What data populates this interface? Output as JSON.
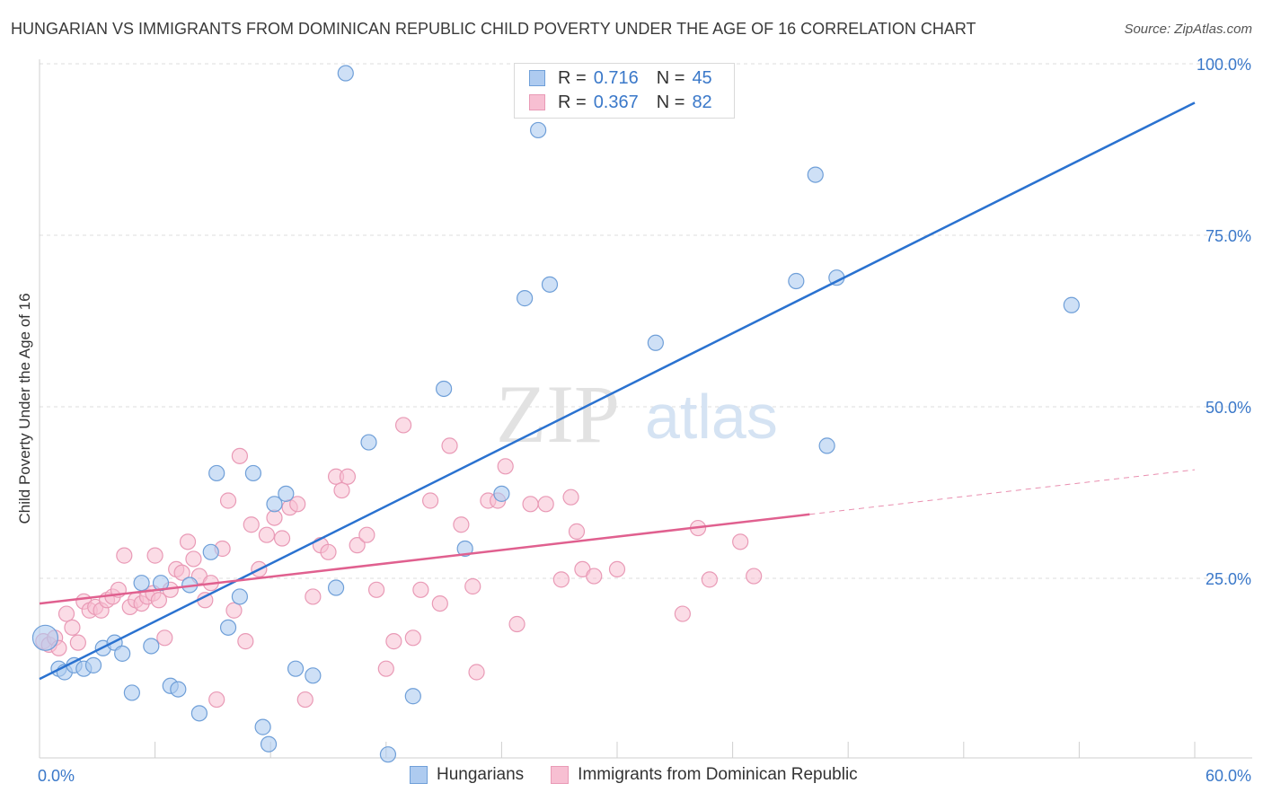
{
  "title": "HUNGARIAN VS IMMIGRANTS FROM DOMINICAN REPUBLIC CHILD POVERTY UNDER THE AGE OF 16 CORRELATION CHART",
  "source": "Source: ZipAtlas.com",
  "watermark": {
    "zip": "ZIP",
    "atlas": "atlas"
  },
  "legend": {
    "r_label": "R =",
    "n_label": "N =",
    "rows": [
      {
        "r": "0.716",
        "n": "45"
      },
      {
        "r": "0.367",
        "n": "82"
      }
    ]
  },
  "colors": {
    "blue_fill": "#aecbf0",
    "blue_stroke": "#6f9fd8",
    "blue_line": "#2a72d0",
    "pink_fill": "#f7bfd2",
    "pink_stroke": "#e99ab6",
    "pink_line": "#e0608f",
    "tick_label": "#3a78c9"
  },
  "chart_data": {
    "type": "scatter",
    "title": "HUNGARIAN VS IMMIGRANTS FROM DOMINICAN REPUBLIC CHILD POVERTY UNDER THE AGE OF 16 CORRELATION CHART",
    "xlabel": "",
    "ylabel": "Child Poverty Under the Age of 16",
    "xlim": [
      0,
      60
    ],
    "ylim": [
      0,
      100
    ],
    "x_tick_labels": [
      "0.0%",
      "60.0%"
    ],
    "y_tick_labels": [
      "25.0%",
      "50.0%",
      "75.0%",
      "100.0%"
    ],
    "y_ticks": [
      25,
      50,
      75,
      100
    ],
    "grid": true,
    "legend_position": "top-center",
    "series": [
      {
        "name": "Hungarians",
        "r": 0.716,
        "n": 45,
        "trend": {
          "x": [
            0,
            60
          ],
          "y": [
            11.5,
            95.5
          ]
        },
        "points": [
          [
            0.3,
            17.5
          ],
          [
            1.0,
            13.0
          ],
          [
            1.3,
            12.5
          ],
          [
            1.8,
            13.5
          ],
          [
            2.3,
            13.0
          ],
          [
            2.8,
            13.5
          ],
          [
            3.3,
            16.0
          ],
          [
            3.9,
            16.8
          ],
          [
            4.3,
            15.2
          ],
          [
            4.8,
            9.5
          ],
          [
            5.3,
            25.5
          ],
          [
            5.8,
            16.3
          ],
          [
            6.3,
            25.5
          ],
          [
            6.8,
            10.5
          ],
          [
            7.2,
            10.0
          ],
          [
            7.8,
            25.2
          ],
          [
            8.3,
            6.5
          ],
          [
            8.9,
            30.0
          ],
          [
            9.2,
            41.5
          ],
          [
            9.8,
            19.0
          ],
          [
            10.4,
            23.5
          ],
          [
            11.1,
            41.5
          ],
          [
            11.6,
            4.5
          ],
          [
            11.9,
            2.0
          ],
          [
            12.2,
            37.0
          ],
          [
            12.8,
            38.5
          ],
          [
            13.3,
            13.0
          ],
          [
            14.2,
            12.0
          ],
          [
            15.4,
            24.8
          ],
          [
            15.9,
            99.8
          ],
          [
            17.1,
            46.0
          ],
          [
            18.1,
            0.5
          ],
          [
            19.4,
            9.0
          ],
          [
            21.0,
            53.8
          ],
          [
            22.1,
            30.5
          ],
          [
            24.0,
            38.5
          ],
          [
            25.2,
            67.0
          ],
          [
            25.9,
            91.5
          ],
          [
            26.5,
            69.0
          ],
          [
            32.0,
            60.5
          ],
          [
            39.3,
            69.5
          ],
          [
            40.3,
            85.0
          ],
          [
            40.9,
            45.5
          ],
          [
            41.4,
            70.0
          ],
          [
            53.6,
            66.0
          ]
        ]
      },
      {
        "name": "Immigrants from Dominican Republic",
        "r": 0.367,
        "n": 82,
        "trend": {
          "x": [
            0,
            40
          ],
          "y": [
            22.5,
            35.5
          ]
        },
        "trend_extension": {
          "x": [
            40,
            60
          ],
          "y": [
            35.5,
            42.0
          ]
        },
        "points": [
          [
            0.2,
            17.0
          ],
          [
            0.5,
            16.5
          ],
          [
            0.8,
            17.5
          ],
          [
            1.0,
            16.0
          ],
          [
            1.4,
            21.0
          ],
          [
            1.7,
            19.0
          ],
          [
            2.0,
            16.8
          ],
          [
            2.3,
            22.8
          ],
          [
            2.6,
            21.5
          ],
          [
            2.9,
            22.0
          ],
          [
            3.2,
            21.5
          ],
          [
            3.5,
            23.0
          ],
          [
            3.8,
            23.5
          ],
          [
            4.1,
            24.5
          ],
          [
            4.4,
            29.5
          ],
          [
            4.7,
            22.0
          ],
          [
            5.0,
            23.0
          ],
          [
            5.3,
            22.5
          ],
          [
            5.6,
            23.5
          ],
          [
            5.9,
            24.0
          ],
          [
            6.2,
            23.0
          ],
          [
            6.5,
            17.5
          ],
          [
            6.8,
            24.5
          ],
          [
            7.1,
            27.5
          ],
          [
            7.4,
            27.0
          ],
          [
            7.7,
            31.5
          ],
          [
            8.0,
            29.0
          ],
          [
            8.3,
            26.5
          ],
          [
            8.6,
            23.0
          ],
          [
            8.9,
            25.5
          ],
          [
            9.2,
            8.5
          ],
          [
            9.5,
            30.5
          ],
          [
            9.8,
            37.5
          ],
          [
            10.1,
            21.5
          ],
          [
            10.4,
            44.0
          ],
          [
            10.7,
            17.0
          ],
          [
            11.0,
            34.0
          ],
          [
            11.4,
            27.5
          ],
          [
            11.8,
            32.5
          ],
          [
            12.2,
            35.0
          ],
          [
            12.6,
            32.0
          ],
          [
            13.0,
            36.5
          ],
          [
            13.4,
            37.0
          ],
          [
            13.8,
            8.5
          ],
          [
            14.2,
            23.5
          ],
          [
            14.6,
            31.0
          ],
          [
            15.0,
            30.0
          ],
          [
            15.4,
            41.0
          ],
          [
            15.7,
            39.0
          ],
          [
            16.0,
            41.0
          ],
          [
            16.5,
            31.0
          ],
          [
            17.0,
            32.5
          ],
          [
            17.5,
            24.5
          ],
          [
            18.0,
            13.0
          ],
          [
            18.4,
            17.0
          ],
          [
            18.9,
            48.5
          ],
          [
            19.4,
            17.5
          ],
          [
            19.8,
            24.5
          ],
          [
            20.3,
            37.5
          ],
          [
            20.8,
            22.5
          ],
          [
            21.3,
            45.5
          ],
          [
            21.9,
            34.0
          ],
          [
            22.5,
            25.0
          ],
          [
            23.3,
            37.5
          ],
          [
            23.8,
            37.5
          ],
          [
            24.2,
            42.5
          ],
          [
            24.8,
            19.5
          ],
          [
            25.5,
            37.0
          ],
          [
            26.3,
            37.0
          ],
          [
            27.1,
            26.0
          ],
          [
            27.6,
            38.0
          ],
          [
            28.2,
            27.5
          ],
          [
            28.8,
            26.5
          ],
          [
            30.0,
            27.5
          ],
          [
            33.4,
            21.0
          ],
          [
            34.2,
            33.5
          ],
          [
            34.8,
            26.0
          ],
          [
            36.4,
            31.5
          ],
          [
            37.1,
            26.5
          ],
          [
            27.9,
            33.0
          ],
          [
            22.7,
            12.5
          ],
          [
            6.0,
            29.5
          ]
        ]
      }
    ]
  },
  "bottom_legend": [
    "Hungarians",
    "Immigrants from Dominican Republic"
  ]
}
